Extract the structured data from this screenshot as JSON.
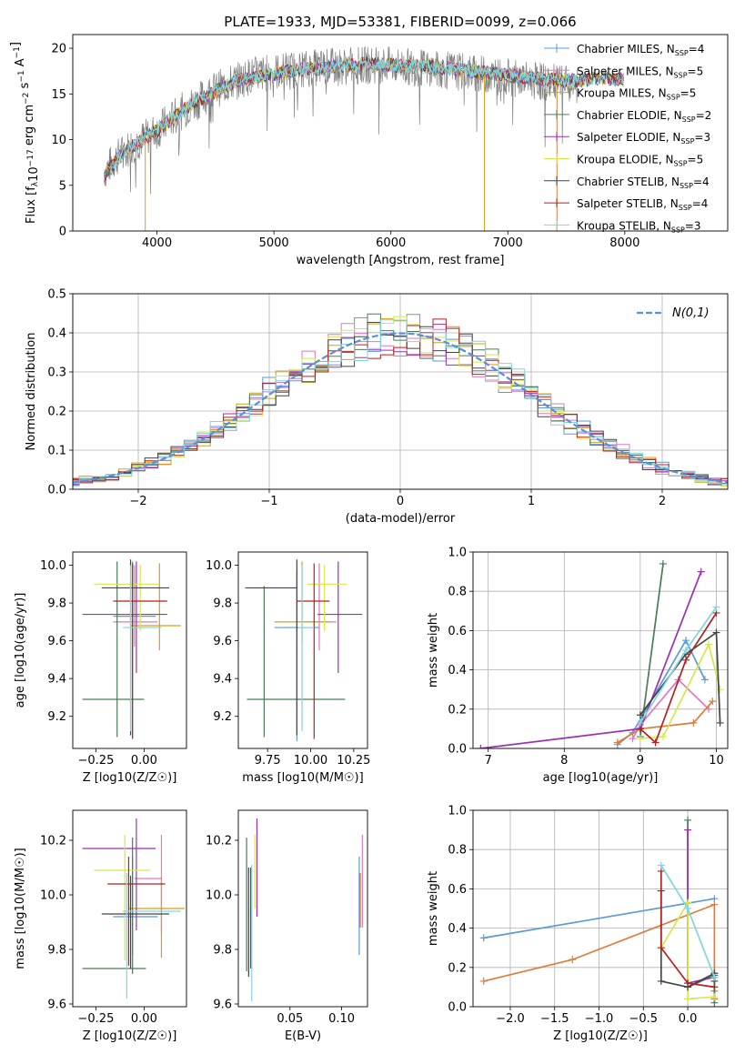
{
  "figure": {
    "title": "PLATE=1933, MJD=53381, FIBERID=0099, z=0.066"
  },
  "legend_entries": [
    {
      "model": "Chabrier MILES",
      "n": "4",
      "color": "#5b9bd5"
    },
    {
      "model": "Salpeter MILES",
      "n": "5",
      "color": "#e377c2"
    },
    {
      "model": "Kroupa MILES",
      "n": "5",
      "color": "#d4a017"
    },
    {
      "model": "Chabrier ELODIE",
      "n": "2",
      "color": "#4a7c59"
    },
    {
      "model": "Salpeter ELODIE",
      "n": "3",
      "color": "#9b30b5"
    },
    {
      "model": "Kroupa ELODIE",
      "n": "5",
      "color": "#d9e64a"
    },
    {
      "model": "Chabrier STELIB",
      "n": "4",
      "color": "#444444"
    },
    {
      "model": "Salpeter STELIB",
      "n": "4",
      "color": "#b22222"
    },
    {
      "model": "Kroupa STELIB",
      "n": "3",
      "color": "#7fd6e0"
    }
  ],
  "chart_data": [
    {
      "id": "spectrum",
      "type": "line",
      "xlabel": "wavelength [Angstrom, rest frame]",
      "ylabel_main": "Flux [f",
      "ylabel_tail": "10",
      "ylabel_exp1": "−17",
      "ylabel_mid": " erg cm",
      "ylabel_exp2": "−2",
      "ylabel_mid2": " s",
      "ylabel_exp3": "−1",
      "ylabel_end": " A",
      "ylabel_exp4": "−1",
      "ylabel_end2": "]",
      "xlim": [
        3280,
        8880
      ],
      "ylim": [
        0,
        21.5
      ],
      "xticks": [
        4000,
        5000,
        6000,
        7000,
        8000
      ],
      "yticks": [
        0,
        5,
        10,
        15,
        20
      ],
      "continuum": [
        [
          3550,
          6.5
        ],
        [
          3650,
          8
        ],
        [
          3800,
          9.5
        ],
        [
          4000,
          11
        ],
        [
          4200,
          13
        ],
        [
          4500,
          15.5
        ],
        [
          4800,
          17
        ],
        [
          5100,
          17.6
        ],
        [
          5500,
          18
        ],
        [
          5900,
          18.2
        ],
        [
          6300,
          17.8
        ],
        [
          6700,
          17.3
        ],
        [
          7100,
          16.6
        ],
        [
          7400,
          16.2
        ],
        [
          7600,
          15.9
        ]
      ],
      "model_continuum": [
        [
          3550,
          6
        ],
        [
          3700,
          8.5
        ],
        [
          4000,
          11
        ],
        [
          4300,
          14
        ],
        [
          4700,
          16.5
        ],
        [
          5200,
          17.6
        ],
        [
          5800,
          18.3
        ],
        [
          6400,
          17.9
        ],
        [
          6900,
          17.2
        ],
        [
          7300,
          16.6
        ],
        [
          7600,
          16.4
        ],
        [
          7800,
          16.8
        ],
        [
          8000,
          16.5
        ]
      ]
    },
    {
      "id": "residuals",
      "type": "histogram",
      "xlabel": "(data-model)/error",
      "ylabel": "Normed distribution",
      "legend": "N(0,1)",
      "xlim": [
        -2.5,
        2.5
      ],
      "ylim": [
        0,
        0.5
      ],
      "xticks": [
        -2,
        -1,
        0,
        1,
        2
      ],
      "xtick_labels": [
        "−2",
        "−1",
        "0",
        "1",
        "2"
      ],
      "yticks": [
        0.0,
        0.1,
        0.2,
        0.3,
        0.4,
        0.5
      ],
      "ytick_labels": [
        "0.0",
        "0.1",
        "0.2",
        "0.3",
        "0.4",
        "0.5"
      ],
      "bin_width": 0.1
    },
    {
      "id": "age-vs-Z",
      "type": "errorbar",
      "xlabel": "Z [log10(Z/Z☉)]",
      "ylabel": "age [log10(age/yr)]",
      "xlim": [
        -0.37,
        0.22
      ],
      "ylim": [
        9.03,
        10.07
      ],
      "xticks": [
        -0.25,
        0.0
      ],
      "xtick_labels": [
        "−0.25",
        "0.00"
      ],
      "yticks": [
        9.2,
        9.4,
        9.6,
        9.8,
        10.0
      ],
      "ytick_labels": [
        "9.2",
        "9.4",
        "9.6",
        "9.8",
        "10.0"
      ],
      "points": [
        {
          "x": -0.06,
          "y": 9.73,
          "xerr": [
            0.1,
            0.12
          ],
          "yerr": [
            0.64,
            0.29
          ],
          "color": "#5b9bd5"
        },
        {
          "x": -0.05,
          "y": 9.7,
          "xerr": [
            0.11,
            0.12
          ],
          "yerr": [
            0.13,
            0.3
          ],
          "color": "#e377c2"
        },
        {
          "x": 0.08,
          "y": 9.68,
          "xerr": [
            0.15,
            0.11
          ],
          "yerr": [
            0.13,
            0.33
          ],
          "color": "#d4a017"
        },
        {
          "x": -0.14,
          "y": 9.29,
          "xerr": [
            0.18,
            0.14
          ],
          "yerr": [
            0.2,
            0.73
          ],
          "color": "#4a7c59"
        },
        {
          "x": -0.04,
          "y": 9.74,
          "xerr": [
            0.28,
            0.16
          ],
          "yerr": [
            0.31,
            0.28
          ],
          "color": "#9b30b5"
        },
        {
          "x": -0.02,
          "y": 9.9,
          "xerr": [
            0.24,
            0.1
          ],
          "yerr": [
            0.25,
            0.1
          ],
          "color": "#d9e64a"
        },
        {
          "x": -0.07,
          "y": 9.88,
          "xerr": [
            0.15,
            0.2
          ],
          "yerr": [
            0.78,
            0.15
          ],
          "color": "#444444"
        },
        {
          "x": -0.06,
          "y": 9.81,
          "xerr": [
            0.1,
            0.18
          ],
          "yerr": [
            0.73,
            0.2
          ],
          "color": "#b22222"
        },
        {
          "x": -0.07,
          "y": 9.67,
          "xerr": [
            0.04,
            0.16
          ],
          "yerr": [
            0.55,
            0.33
          ],
          "color": "#7fd6e0"
        }
      ]
    },
    {
      "id": "age-vs-mass",
      "type": "errorbar",
      "xlabel": "mass [log10(M/M☉)]",
      "xlim": [
        9.58,
        10.33
      ],
      "ylim": [
        9.03,
        10.07
      ],
      "xticks": [
        9.75,
        10.0,
        10.25
      ],
      "xtick_labels": [
        "9.75",
        "10.00",
        "10.25"
      ],
      "yticks": [
        9.2,
        9.4,
        9.6,
        9.8,
        10.0
      ],
      "ytick_labels": [
        "9.2",
        "9.4",
        "9.6",
        "9.8",
        "10.0"
      ],
      "points": [
        {
          "x": 9.92,
          "y": 9.67,
          "xerr": [
            0.13,
            0.13
          ],
          "yerr": [
            0.6,
            0.3
          ],
          "color": "#5b9bd5"
        },
        {
          "x": 10.05,
          "y": 9.7,
          "xerr": [
            0.1,
            0.1
          ],
          "yerr": [
            0.15,
            0.31
          ],
          "color": "#e377c2"
        },
        {
          "x": 9.95,
          "y": 9.7,
          "xerr": [
            0.16,
            0.16
          ],
          "yerr": [
            0.12,
            0.32
          ],
          "color": "#d4a017"
        },
        {
          "x": 9.73,
          "y": 9.29,
          "xerr": [
            0.1,
            0.47
          ],
          "yerr": [
            0.2,
            0.6
          ],
          "color": "#4a7c59"
        },
        {
          "x": 10.16,
          "y": 9.74,
          "xerr": [
            0.12,
            0.14
          ],
          "yerr": [
            0.31,
            0.28
          ],
          "color": "#9b30b5"
        },
        {
          "x": 10.08,
          "y": 9.9,
          "xerr": [
            0.1,
            0.13
          ],
          "yerr": [
            0.25,
            0.1
          ],
          "color": "#d9e64a"
        },
        {
          "x": 9.92,
          "y": 9.88,
          "xerr": [
            0.3,
            0.0
          ],
          "yerr": [
            0.78,
            0.15
          ],
          "color": "#444444"
        },
        {
          "x": 10.02,
          "y": 9.81,
          "xerr": [
            0.1,
            0.09
          ],
          "yerr": [
            0.73,
            0.2
          ],
          "color": "#b22222"
        },
        {
          "x": 9.95,
          "y": 9.67,
          "xerr": [
            0.02,
            0.07
          ],
          "yerr": [
            0.55,
            0.33
          ],
          "color": "#7fd6e0"
        }
      ]
    },
    {
      "id": "weight-vs-age",
      "type": "line",
      "xlabel": "age [log10(age/yr)]",
      "ylabel": "mass weight",
      "xlim": [
        6.8,
        10.15
      ],
      "ylim": [
        0,
        1
      ],
      "xticks": [
        7,
        8,
        9,
        10
      ],
      "xtick_labels": [
        "7",
        "8",
        "9",
        "10"
      ],
      "yticks": [
        0,
        0.2,
        0.4,
        0.6,
        0.8,
        1.0
      ],
      "ytick_labels": [
        "0.0",
        "0.2",
        "0.4",
        "0.6",
        "0.8",
        "1.0"
      ],
      "series": [
        {
          "color": "#5b9bd5",
          "x": [
            8.7,
            8.9,
            9.6,
            9.85
          ],
          "y": [
            0.02,
            0.08,
            0.55,
            0.35
          ]
        },
        {
          "color": "#e377c2",
          "x": [
            8.9,
            9.0,
            9.5,
            9.9
          ],
          "y": [
            0.05,
            0.12,
            0.35,
            0.2
          ]
        },
        {
          "color": "#e07b39",
          "x": [
            8.7,
            9.0,
            9.7,
            9.95
          ],
          "y": [
            0.03,
            0.1,
            0.13,
            0.24
          ]
        },
        {
          "color": "#4a7c59",
          "x": [
            9.0,
            9.3
          ],
          "y": [
            0.06,
            0.94
          ]
        },
        {
          "color": "#9b30b5",
          "x": [
            6.9,
            9.0,
            9.8
          ],
          "y": [
            0.0,
            0.1,
            0.9
          ]
        },
        {
          "color": "#d9e64a",
          "x": [
            9.0,
            9.3,
            9.9,
            10.05
          ],
          "y": [
            0.05,
            0.06,
            0.53,
            0.3
          ]
        },
        {
          "color": "#444444",
          "x": [
            9.0,
            9.6,
            10.0,
            10.05
          ],
          "y": [
            0.17,
            0.48,
            0.59,
            0.13
          ]
        },
        {
          "color": "#b22222",
          "x": [
            9.0,
            9.2,
            9.6,
            10.0
          ],
          "y": [
            0.1,
            0.03,
            0.45,
            0.69
          ]
        },
        {
          "color": "#7fd6e0",
          "x": [
            9.0,
            9.6,
            10.0
          ],
          "y": [
            0.13,
            0.5,
            0.72
          ]
        }
      ]
    },
    {
      "id": "mass-vs-Z",
      "type": "errorbar",
      "xlabel": "Z [log10(Z/Z☉)]",
      "ylabel": "mass [log10(M/M☉)]",
      "xlim": [
        -0.37,
        0.22
      ],
      "ylim": [
        9.59,
        10.31
      ],
      "xticks": [
        -0.25,
        0.0
      ],
      "xtick_labels": [
        "−0.25",
        "0.00"
      ],
      "yticks": [
        9.6,
        9.8,
        10.0,
        10.2
      ],
      "ytick_labels": [
        "9.6",
        "9.8",
        "10.0",
        "10.2"
      ],
      "points": [
        {
          "x": -0.06,
          "y": 9.92,
          "xerr": [
            0.1,
            0.13
          ],
          "yerr": [
            0.14,
            0.22
          ],
          "color": "#5b9bd5"
        },
        {
          "x": 0.09,
          "y": 10.06,
          "xerr": [
            0.14,
            0.0
          ],
          "yerr": [
            0.2,
            0.16
          ],
          "color": "#e377c2"
        },
        {
          "x": 0.09,
          "y": 9.95,
          "xerr": [
            0.17,
            0.12
          ],
          "yerr": [
            0.18,
            0.12
          ],
          "color": "#d4a017"
        },
        {
          "x": -0.06,
          "y": 9.73,
          "xerr": [
            0.26,
            0.07
          ],
          "yerr": [
            0.02,
            0.48
          ],
          "color": "#4a7c59"
        },
        {
          "x": -0.04,
          "y": 10.17,
          "xerr": [
            0.28,
            0.1
          ],
          "yerr": [
            0.3,
            0.11
          ],
          "color": "#9b30b5"
        },
        {
          "x": -0.1,
          "y": 10.09,
          "xerr": [
            0.16,
            0.13
          ],
          "yerr": [
            0.33,
            0.13
          ],
          "color": "#d9e64a"
        },
        {
          "x": -0.07,
          "y": 9.93,
          "xerr": [
            0.15,
            0.2
          ],
          "yerr": [
            0.2,
            0.14
          ],
          "color": "#444444"
        },
        {
          "x": -0.08,
          "y": 10.04,
          "xerr": [
            0.11,
            0.19
          ],
          "yerr": [
            0.3,
            0.1
          ],
          "color": "#b22222"
        },
        {
          "x": -0.09,
          "y": 9.94,
          "xerr": [
            0.02,
            0.28
          ],
          "yerr": [
            0.32,
            0.14
          ],
          "color": "#7fd6e0"
        }
      ]
    },
    {
      "id": "mass-vs-EBV",
      "type": "errorbar",
      "xlabel": "E(B-V)",
      "xlim": [
        0.0,
        0.125
      ],
      "ylim": [
        9.59,
        10.31
      ],
      "xticks": [
        0.05,
        0.1
      ],
      "xtick_labels": [
        "0.05",
        "0.10"
      ],
      "yticks": [
        9.6,
        9.8,
        10.0,
        10.2
      ],
      "ytick_labels": [
        "9.6",
        "9.8",
        "10.0",
        "10.2"
      ],
      "points": [
        {
          "x": 0.117,
          "y": 9.95,
          "yerr": [
            0.17,
            0.19
          ],
          "color": "#5b9bd5"
        },
        {
          "x": 0.12,
          "y": 10.05,
          "yerr": [
            0.17,
            0.17
          ],
          "color": "#e377c2"
        },
        {
          "x": 0.118,
          "y": 9.98,
          "yerr": [
            0.1,
            0.1
          ],
          "color": "#e07b39"
        },
        {
          "x": 0.008,
          "y": 9.98,
          "yerr": [
            0.26,
            0.23
          ],
          "color": "#4a7c59"
        },
        {
          "x": 0.018,
          "y": 10.1,
          "yerr": [
            0.18,
            0.18
          ],
          "color": "#9b30b5"
        },
        {
          "x": 0.016,
          "y": 10.09,
          "yerr": [
            0.14,
            0.13
          ],
          "color": "#d9e64a"
        },
        {
          "x": 0.01,
          "y": 9.9,
          "yerr": [
            0.2,
            0.2
          ],
          "color": "#444444"
        },
        {
          "x": 0.012,
          "y": 9.94,
          "yerr": [
            0.21,
            0.16
          ],
          "color": "#b22222"
        },
        {
          "x": 0.013,
          "y": 9.93,
          "yerr": [
            0.32,
            0.18
          ],
          "color": "#7fd6e0"
        }
      ]
    },
    {
      "id": "weight-vs-Z",
      "type": "line",
      "xlabel": "Z [log10(Z/Z☉)]",
      "ylabel": "mass weight",
      "xlim": [
        -2.42,
        0.45
      ],
      "ylim": [
        0,
        1
      ],
      "xticks": [
        -2.0,
        -1.5,
        -1.0,
        -0.5,
        0.0
      ],
      "xtick_labels": [
        "−2.0",
        "−1.5",
        "−1.0",
        "−0.5",
        "0.0"
      ],
      "yticks": [
        0,
        0.2,
        0.4,
        0.6,
        0.8,
        1.0
      ],
      "ytick_labels": [
        "0.0",
        "0.2",
        "0.4",
        "0.6",
        "0.8",
        "1.0"
      ],
      "series": [
        {
          "color": "#5b9bd5",
          "x": [
            -2.3,
            0.3
          ],
          "y": [
            0.35,
            0.55
          ]
        },
        {
          "color": "#e07b39",
          "x": [
            -2.3,
            -1.3,
            0.3,
            0.3,
            0.3
          ],
          "y": [
            0.13,
            0.24,
            0.52,
            0.08,
            0.04
          ]
        },
        {
          "color": "#4a7c59",
          "x": [
            0.0,
            0.0,
            0.3,
            0.3
          ],
          "y": [
            0.95,
            0.1,
            0.16,
            0.02
          ]
        },
        {
          "color": "#9b30b5",
          "x": [
            0.0,
            0.0,
            0.3
          ],
          "y": [
            0.9,
            0.12,
            0.15
          ]
        },
        {
          "color": "#d9e64a",
          "x": [
            -0.3,
            0.0,
            0.0,
            0.3
          ],
          "y": [
            0.3,
            0.53,
            0.04,
            0.05
          ]
        },
        {
          "color": "#444444",
          "x": [
            -0.3,
            -0.3,
            0.0,
            0.3,
            0.3
          ],
          "y": [
            0.59,
            0.13,
            0.1,
            0.17,
            0.13
          ]
        },
        {
          "color": "#b22222",
          "x": [
            -0.3,
            -0.3,
            0.0,
            0.3
          ],
          "y": [
            0.69,
            0.3,
            0.12,
            0.1
          ]
        },
        {
          "color": "#7fd6e0",
          "x": [
            -0.3,
            0.0,
            0.3
          ],
          "y": [
            0.72,
            0.5,
            0.15
          ]
        }
      ]
    }
  ]
}
